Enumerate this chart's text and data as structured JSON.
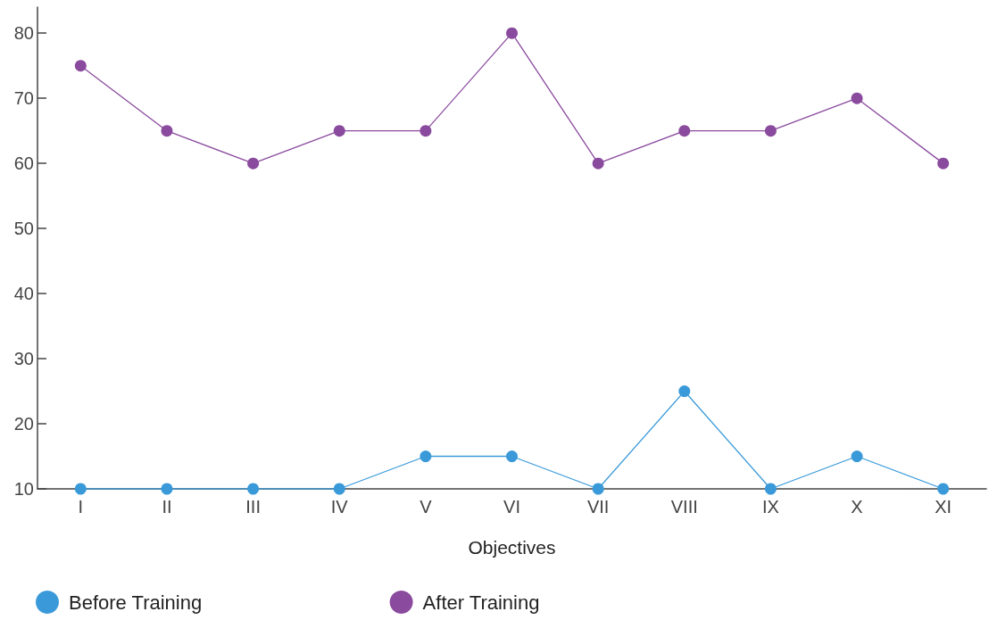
{
  "chart_data": {
    "type": "line",
    "xlabel": "Objectives",
    "categories": [
      "I",
      "II",
      "III",
      "IV",
      "V",
      "VI",
      "VII",
      "VIII",
      "IX",
      "X",
      "XI"
    ],
    "series": [
      {
        "name": "Before Training",
        "color": "#3a9ad9",
        "values": [
          10,
          10,
          10,
          10,
          15,
          15,
          10,
          25,
          10,
          15,
          10
        ]
      },
      {
        "name": "After Training",
        "color": "#8a4a9e",
        "values": [
          75,
          65,
          60,
          65,
          65,
          80,
          60,
          65,
          65,
          70,
          60
        ]
      }
    ],
    "ylim": [
      10,
      84
    ],
    "yticks": [
      10,
      20,
      30,
      40,
      50,
      60,
      70,
      80
    ],
    "grid": false,
    "legend": "bottom left",
    "marker": "circle",
    "line_style": "solid"
  }
}
